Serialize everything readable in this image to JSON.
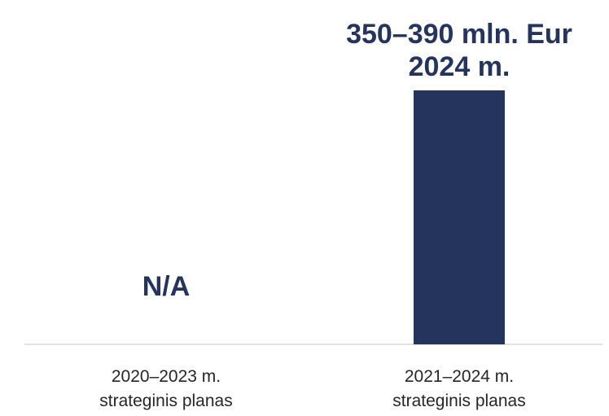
{
  "chart_data": {
    "type": "bar",
    "categories": [
      [
        "2020–2023 m.",
        "strateginis planas"
      ],
      [
        "2021–2024 m.",
        "strateginis planas"
      ]
    ],
    "values": [
      null,
      1
    ],
    "data_labels": [
      [
        "N/A"
      ],
      [
        "350–390 mln. Eur",
        "2024 m."
      ]
    ],
    "grid": false,
    "legend": "none"
  },
  "colors": {
    "bar": "#25345c",
    "label": "#25345c",
    "axis": "#d9d9d9",
    "tick_text": "#262626"
  }
}
